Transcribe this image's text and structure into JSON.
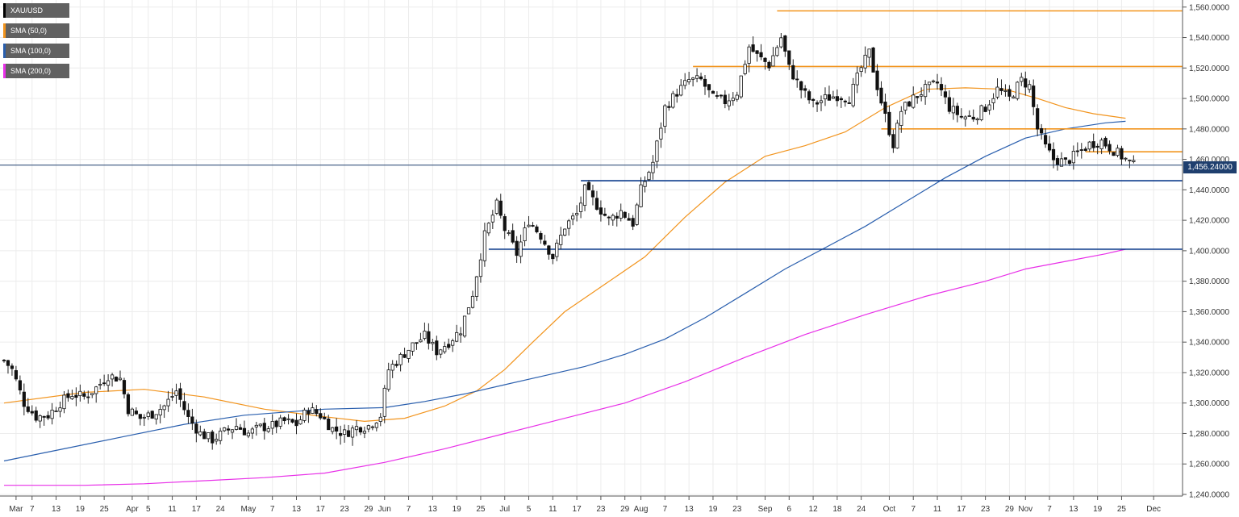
{
  "legend": [
    {
      "label": "XAU/USD",
      "color": "#000000"
    },
    {
      "label": "SMA (50,0)",
      "color": "#f2941d"
    },
    {
      "label": "SMA (100,0)",
      "color": "#2a5fae"
    },
    {
      "label": "SMA (200,0)",
      "color": "#e830e8"
    }
  ],
  "price_tag": "1,456.24000",
  "chart_data": {
    "type": "candlestick",
    "ylim": [
      1240,
      1562
    ],
    "y_ticks": [
      1240,
      1260,
      1280,
      1300,
      1320,
      1340,
      1360,
      1380,
      1400,
      1420,
      1440,
      1460,
      1480,
      1500,
      1520,
      1540,
      1560
    ],
    "y_tick_labels": [
      "1,240.0000",
      "1,260.0000",
      "1,280.0000",
      "1,300.0000",
      "1,320.0000",
      "1,340.0000",
      "1,360.0000",
      "1,380.0000",
      "1,400.0000",
      "1,420.0000",
      "1,440.0000",
      "1,460.0000",
      "1,480.0000",
      "1,500.0000",
      "1,520.0000",
      "1,540.0000",
      "1,560.0000"
    ],
    "x_ticks": [
      {
        "i": 3,
        "label": "Mar"
      },
      {
        "i": 7,
        "label": "7"
      },
      {
        "i": 13,
        "label": "13"
      },
      {
        "i": 19,
        "label": "19"
      },
      {
        "i": 25,
        "label": "25"
      },
      {
        "i": 32,
        "label": "Apr"
      },
      {
        "i": 36,
        "label": "5"
      },
      {
        "i": 42,
        "label": "11"
      },
      {
        "i": 48,
        "label": "17"
      },
      {
        "i": 54,
        "label": "24"
      },
      {
        "i": 61,
        "label": "May"
      },
      {
        "i": 67,
        "label": "7"
      },
      {
        "i": 73,
        "label": "13"
      },
      {
        "i": 79,
        "label": "17"
      },
      {
        "i": 85,
        "label": "23"
      },
      {
        "i": 91,
        "label": "29"
      },
      {
        "i": 95,
        "label": "Jun"
      },
      {
        "i": 101,
        "label": "7"
      },
      {
        "i": 107,
        "label": "13"
      },
      {
        "i": 113,
        "label": "19"
      },
      {
        "i": 119,
        "label": "25"
      },
      {
        "i": 125,
        "label": "Jul"
      },
      {
        "i": 131,
        "label": "5"
      },
      {
        "i": 137,
        "label": "11"
      },
      {
        "i": 143,
        "label": "17"
      },
      {
        "i": 149,
        "label": "23"
      },
      {
        "i": 155,
        "label": "29"
      },
      {
        "i": 159,
        "label": "Aug"
      },
      {
        "i": 165,
        "label": "7"
      },
      {
        "i": 171,
        "label": "13"
      },
      {
        "i": 177,
        "label": "19"
      },
      {
        "i": 183,
        "label": "23"
      },
      {
        "i": 190,
        "label": "Sep"
      },
      {
        "i": 196,
        "label": "6"
      },
      {
        "i": 202,
        "label": "12"
      },
      {
        "i": 208,
        "label": "18"
      },
      {
        "i": 214,
        "label": "24"
      },
      {
        "i": 221,
        "label": "Oct"
      },
      {
        "i": 227,
        "label": "7"
      },
      {
        "i": 233,
        "label": "11"
      },
      {
        "i": 239,
        "label": "17"
      },
      {
        "i": 245,
        "label": "23"
      },
      {
        "i": 251,
        "label": "29"
      },
      {
        "i": 255,
        "label": "Nov"
      },
      {
        "i": 261,
        "label": "7"
      },
      {
        "i": 267,
        "label": "13"
      },
      {
        "i": 273,
        "label": "19"
      },
      {
        "i": 279,
        "label": "25"
      },
      {
        "i": 287,
        "label": "Dec"
      }
    ],
    "n_slots": 293,
    "current_price": 1456.24,
    "horizontal_levels": [
      {
        "value": 1557.5,
        "from_i": 193,
        "color": "#f2941d"
      },
      {
        "value": 1521,
        "from_i": 172,
        "color": "#f2941d"
      },
      {
        "value": 1480,
        "from_i": 219,
        "color": "#f2941d"
      },
      {
        "value": 1465,
        "from_i": 270,
        "color": "#f2941d"
      },
      {
        "value": 1446,
        "from_i": 144,
        "color": "#0d3b8c"
      },
      {
        "value": 1401,
        "from_i": 121,
        "color": "#0d3b8c"
      }
    ],
    "close_points": [
      [
        0,
        1328
      ],
      [
        2,
        1322
      ],
      [
        5,
        1300
      ],
      [
        8,
        1291
      ],
      [
        11,
        1292
      ],
      [
        14,
        1300
      ],
      [
        17,
        1306
      ],
      [
        20,
        1304
      ],
      [
        23,
        1310
      ],
      [
        26,
        1318
      ],
      [
        29,
        1316
      ],
      [
        31,
        1296
      ],
      [
        34,
        1290
      ],
      [
        37,
        1293
      ],
      [
        40,
        1298
      ],
      [
        43,
        1308
      ],
      [
        46,
        1290
      ],
      [
        49,
        1280
      ],
      [
        52,
        1276
      ],
      [
        55,
        1281
      ],
      [
        58,
        1285
      ],
      [
        61,
        1280
      ],
      [
        64,
        1284
      ],
      [
        67,
        1285
      ],
      [
        70,
        1288
      ],
      [
        73,
        1286
      ],
      [
        76,
        1296
      ],
      [
        79,
        1292
      ],
      [
        82,
        1283
      ],
      [
        85,
        1280
      ],
      [
        88,
        1284
      ],
      [
        91,
        1285
      ],
      [
        94,
        1292
      ],
      [
        96,
        1322
      ],
      [
        99,
        1330
      ],
      [
        102,
        1338
      ],
      [
        105,
        1344
      ],
      [
        108,
        1334
      ],
      [
        111,
        1340
      ],
      [
        114,
        1348
      ],
      [
        117,
        1372
      ],
      [
        120,
        1410
      ],
      [
        123,
        1430
      ],
      [
        125,
        1414
      ],
      [
        128,
        1398
      ],
      [
        131,
        1420
      ],
      [
        134,
        1410
      ],
      [
        137,
        1396
      ],
      [
        140,
        1416
      ],
      [
        143,
        1424
      ],
      [
        145,
        1440
      ],
      [
        148,
        1430
      ],
      [
        151,
        1420
      ],
      [
        154,
        1426
      ],
      [
        157,
        1418
      ],
      [
        159,
        1440
      ],
      [
        162,
        1458
      ],
      [
        165,
        1494
      ],
      [
        168,
        1504
      ],
      [
        171,
        1512
      ],
      [
        174,
        1512
      ],
      [
        177,
        1500
      ],
      [
        180,
        1498
      ],
      [
        183,
        1504
      ],
      [
        186,
        1534
      ],
      [
        188,
        1528
      ],
      [
        191,
        1522
      ],
      [
        194,
        1540
      ],
      [
        196,
        1520
      ],
      [
        199,
        1506
      ],
      [
        202,
        1496
      ],
      [
        205,
        1500
      ],
      [
        208,
        1502
      ],
      [
        211,
        1500
      ],
      [
        214,
        1520
      ],
      [
        216,
        1530
      ],
      [
        218,
        1508
      ],
      [
        220,
        1488
      ],
      [
        222,
        1470
      ],
      [
        224,
        1492
      ],
      [
        227,
        1500
      ],
      [
        230,
        1506
      ],
      [
        233,
        1510
      ],
      [
        236,
        1494
      ],
      [
        239,
        1488
      ],
      [
        242,
        1488
      ],
      [
        245,
        1494
      ],
      [
        248,
        1506
      ],
      [
        251,
        1500
      ],
      [
        254,
        1512
      ],
      [
        256,
        1508
      ],
      [
        258,
        1480
      ],
      [
        260,
        1468
      ],
      [
        262,
        1460
      ],
      [
        265,
        1458
      ],
      [
        268,
        1464
      ],
      [
        271,
        1470
      ],
      [
        274,
        1472
      ],
      [
        277,
        1466
      ],
      [
        280,
        1460
      ],
      [
        282,
        1456
      ]
    ],
    "series": [
      {
        "name": "SMA (50,0)",
        "color": "#f2941d",
        "points": [
          [
            0,
            1300
          ],
          [
            20,
            1307
          ],
          [
            35,
            1309
          ],
          [
            50,
            1304
          ],
          [
            65,
            1296
          ],
          [
            80,
            1291
          ],
          [
            90,
            1288
          ],
          [
            100,
            1290
          ],
          [
            110,
            1298
          ],
          [
            118,
            1308
          ],
          [
            125,
            1322
          ],
          [
            132,
            1340
          ],
          [
            140,
            1360
          ],
          [
            150,
            1378
          ],
          [
            160,
            1396
          ],
          [
            170,
            1422
          ],
          [
            180,
            1445
          ],
          [
            190,
            1462
          ],
          [
            200,
            1469
          ],
          [
            210,
            1478
          ],
          [
            220,
            1494
          ],
          [
            230,
            1506
          ],
          [
            240,
            1507
          ],
          [
            250,
            1506
          ],
          [
            258,
            1500
          ],
          [
            265,
            1494
          ],
          [
            272,
            1490
          ],
          [
            280,
            1487
          ]
        ]
      },
      {
        "name": "SMA (100,0)",
        "color": "#2a5fae",
        "points": [
          [
            0,
            1262
          ],
          [
            15,
            1270
          ],
          [
            30,
            1278
          ],
          [
            45,
            1286
          ],
          [
            60,
            1292
          ],
          [
            80,
            1296
          ],
          [
            95,
            1297
          ],
          [
            105,
            1301
          ],
          [
            115,
            1306
          ],
          [
            125,
            1312
          ],
          [
            135,
            1318
          ],
          [
            145,
            1324
          ],
          [
            155,
            1332
          ],
          [
            165,
            1342
          ],
          [
            175,
            1356
          ],
          [
            185,
            1372
          ],
          [
            195,
            1388
          ],
          [
            205,
            1402
          ],
          [
            215,
            1416
          ],
          [
            225,
            1432
          ],
          [
            235,
            1448
          ],
          [
            245,
            1462
          ],
          [
            255,
            1474
          ],
          [
            265,
            1480
          ],
          [
            275,
            1484
          ],
          [
            280,
            1485
          ]
        ]
      },
      {
        "name": "SMA (200,0)",
        "color": "#e830e8",
        "points": [
          [
            0,
            1246
          ],
          [
            20,
            1246
          ],
          [
            35,
            1247
          ],
          [
            50,
            1249
          ],
          [
            65,
            1251
          ],
          [
            80,
            1254
          ],
          [
            95,
            1261
          ],
          [
            110,
            1270
          ],
          [
            125,
            1280
          ],
          [
            140,
            1290
          ],
          [
            155,
            1300
          ],
          [
            170,
            1314
          ],
          [
            185,
            1330
          ],
          [
            200,
            1345
          ],
          [
            215,
            1358
          ],
          [
            230,
            1370
          ],
          [
            245,
            1380
          ],
          [
            255,
            1388
          ],
          [
            265,
            1393
          ],
          [
            275,
            1398
          ],
          [
            280,
            1401
          ]
        ]
      }
    ]
  }
}
